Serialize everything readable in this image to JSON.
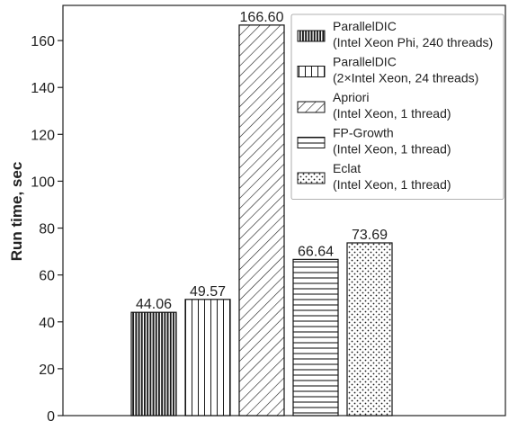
{
  "chart_data": {
    "type": "bar",
    "title": "",
    "xlabel": "",
    "ylabel": "Run time, sec",
    "ylim": [
      0,
      175
    ],
    "yticks": [
      0,
      20,
      40,
      60,
      80,
      100,
      120,
      140,
      160
    ],
    "grid": false,
    "legend_position": "top-right",
    "series": [
      {
        "name_line1": "ParallelDIC",
        "name_line2": "(Intel Xeon Phi, 240 threads)",
        "value": 44.06,
        "value_label": "44.06",
        "pattern": "dense-vertical"
      },
      {
        "name_line1": "ParallelDIC",
        "name_line2": "(2×Intel Xeon, 24 threads)",
        "value": 49.57,
        "value_label": "49.57",
        "pattern": "vertical"
      },
      {
        "name_line1": "Apriori",
        "name_line2": "(Intel Xeon, 1 thread)",
        "value": 166.6,
        "value_label": "166.60",
        "pattern": "diagonal"
      },
      {
        "name_line1": "FP-Growth",
        "name_line2": "(Intel Xeon, 1 thread)",
        "value": 66.64,
        "value_label": "66.64",
        "pattern": "horizontal"
      },
      {
        "name_line1": "Eclat",
        "name_line2": "(Intel Xeon, 1 thread)",
        "value": 73.69,
        "value_label": "73.69",
        "pattern": "dots"
      }
    ]
  }
}
